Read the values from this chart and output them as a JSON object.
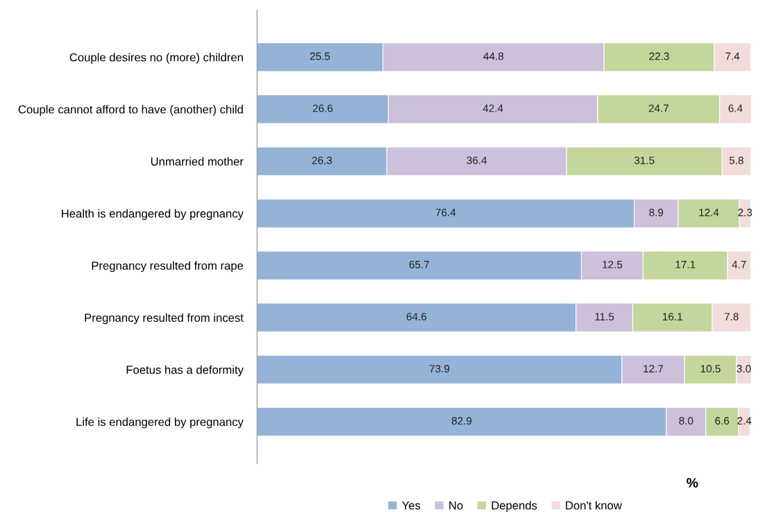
{
  "chart_data": {
    "type": "bar",
    "orientation": "horizontal",
    "stacked": true,
    "xlabel": "%",
    "legend": "bottom",
    "grid": false,
    "tick_labels": "y",
    "categories": [
      "Couple desires no (more) children",
      "Couple cannot afford to have (another) child",
      "Unmarried mother",
      "Health is endangered by pregnancy",
      "Pregnancy resulted from rape",
      "Pregnancy resulted from incest",
      "Foetus has a deformity",
      "Life is endangered by pregnancy"
    ],
    "series": [
      {
        "name": "Yes",
        "color": "#95b3d7",
        "values": [
          25.5,
          26.6,
          26.3,
          76.4,
          65.7,
          64.6,
          73.9,
          82.9
        ],
        "value_labels": [
          "25.5",
          "26.6",
          "26.3",
          "76.4",
          "65.7",
          "64.6",
          "73.9",
          "82.9"
        ]
      },
      {
        "name": "No",
        "color": "#ccc0da",
        "values": [
          44.8,
          42.4,
          36.4,
          8.9,
          12.5,
          11.5,
          12.7,
          8.0
        ],
        "value_labels": [
          "44.8",
          "42.4",
          "36.4",
          "8.9",
          "12.5",
          "11.5",
          "12.7",
          "8.0"
        ]
      },
      {
        "name": "Depends",
        "color": "#c3d69b",
        "values": [
          22.3,
          24.7,
          31.5,
          12.4,
          17.1,
          16.1,
          10.5,
          6.6
        ],
        "value_labels": [
          "22.3",
          "24.7",
          "31.5",
          "12.4",
          "17.1",
          "16.1",
          "10.5",
          "6.6"
        ]
      },
      {
        "name": "Don't know",
        "color": "#f2dcdb",
        "values": [
          7.4,
          6.4,
          5.8,
          2.3,
          4.7,
          7.8,
          3.0,
          2.4
        ],
        "value_labels": [
          "7.4",
          "6.4",
          "5.8",
          "2.3",
          "4.7",
          "7.8",
          "3.0",
          "2.4"
        ]
      }
    ]
  }
}
